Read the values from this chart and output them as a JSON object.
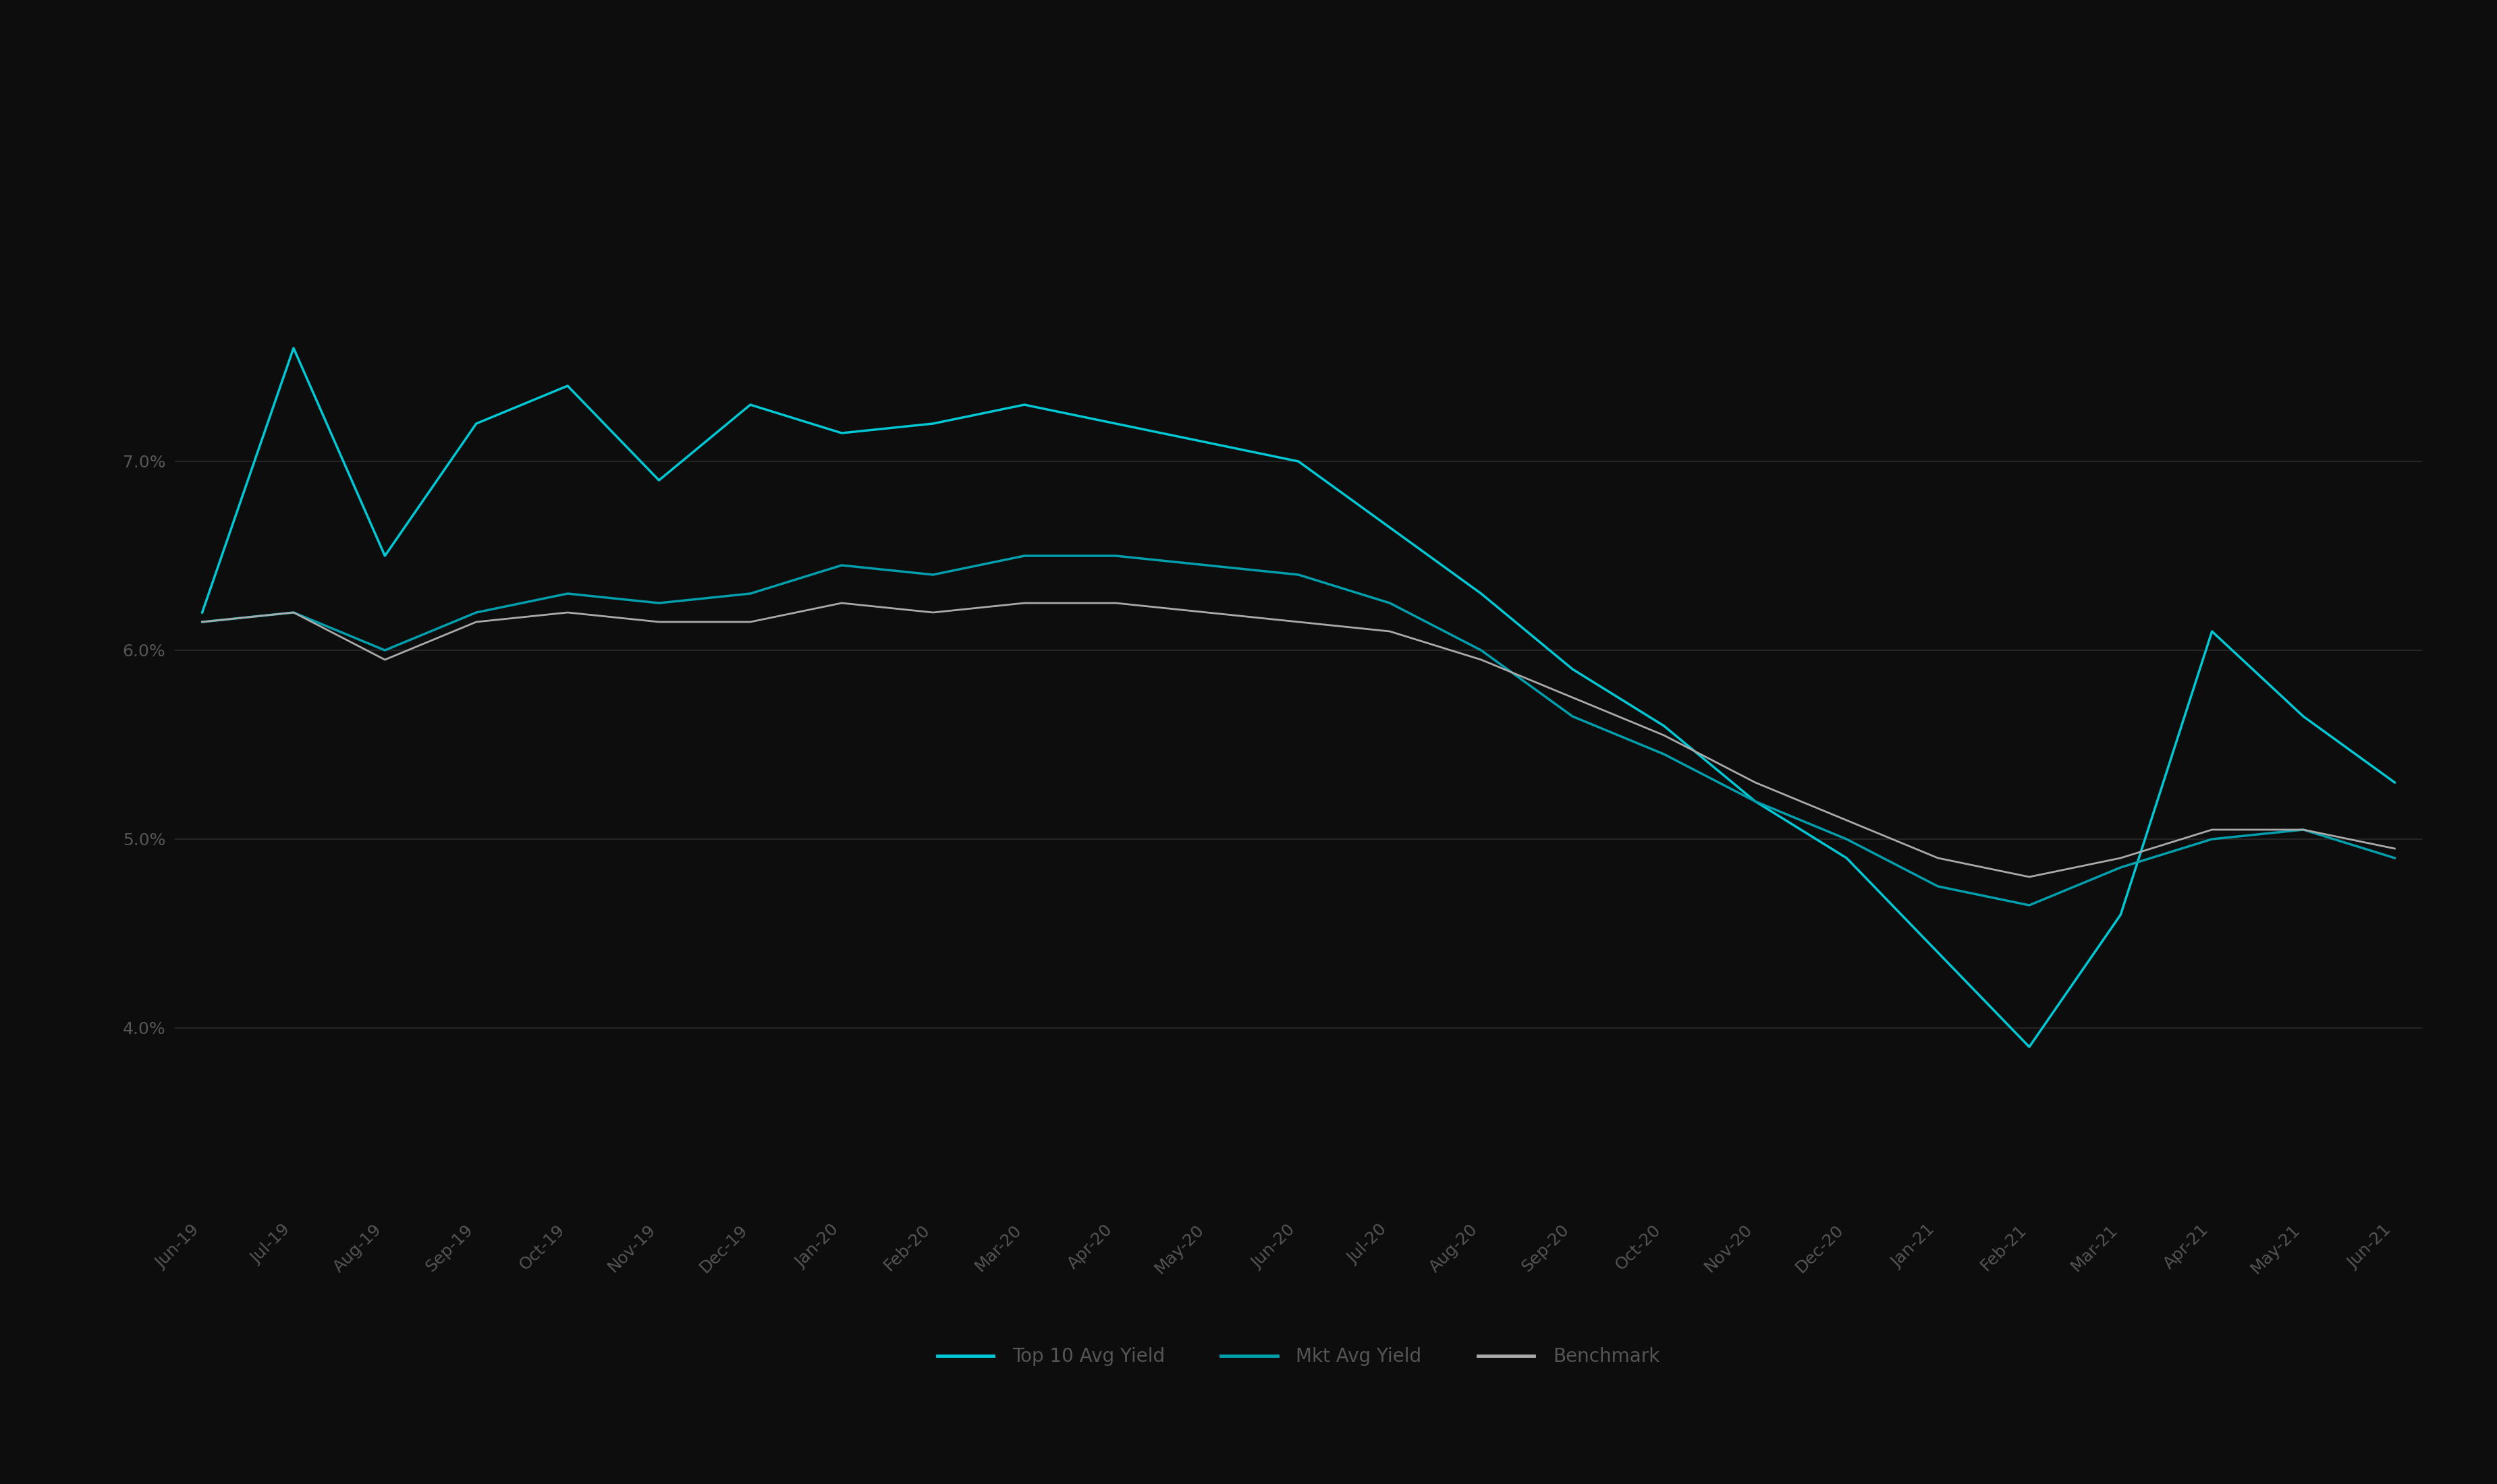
{
  "background_color": "#0d0d0d",
  "text_color": "#555555",
  "grid_color": "#2a2a2a",
  "title": "",
  "x_labels": [
    "Jun-19",
    "Jul-19",
    "Aug-19",
    "Sep-19",
    "Oct-19",
    "Nov-19",
    "Dec-19",
    "Jan-20",
    "Feb-20",
    "Mar-20",
    "Apr-20",
    "May-20",
    "Jun-20",
    "Jul-20",
    "Aug-20",
    "Sep-20",
    "Oct-20",
    "Nov-20",
    "Dec-20",
    "Jan-21",
    "Feb-21",
    "Mar-21",
    "Apr-21",
    "May-21",
    "Jun-21"
  ],
  "series": [
    {
      "name": "Top 10 Avg Yield",
      "color": "#00c8d4",
      "linewidth": 2.5,
      "values": [
        6.2,
        7.6,
        6.5,
        7.2,
        7.4,
        6.9,
        7.3,
        7.15,
        7.2,
        7.3,
        7.2,
        7.1,
        7.0,
        6.65,
        6.3,
        5.9,
        5.6,
        5.2,
        4.9,
        4.4,
        3.9,
        4.6,
        6.1,
        5.65,
        5.3
      ]
    },
    {
      "name": "Mkt Avg Yield",
      "color": "#009fad",
      "linewidth": 2.5,
      "values": [
        6.15,
        6.2,
        6.0,
        6.2,
        6.3,
        6.25,
        6.3,
        6.45,
        6.4,
        6.5,
        6.5,
        6.45,
        6.4,
        6.25,
        6.0,
        5.65,
        5.45,
        5.2,
        5.0,
        4.75,
        4.65,
        4.85,
        5.0,
        5.05,
        4.9
      ]
    },
    {
      "name": "Benchmark",
      "color": "#aaaaaa",
      "linewidth": 2.0,
      "values": [
        6.15,
        6.2,
        5.95,
        6.15,
        6.2,
        6.15,
        6.15,
        6.25,
        6.2,
        6.25,
        6.25,
        6.2,
        6.15,
        6.1,
        5.95,
        5.75,
        5.55,
        5.3,
        5.1,
        4.9,
        4.8,
        4.9,
        5.05,
        5.05,
        4.95
      ]
    }
  ],
  "ylim": [
    3.0,
    8.5
  ],
  "yticks": [
    4.0,
    5.0,
    6.0,
    7.0
  ],
  "legend_entries": [
    {
      "label": "Top 10 Avg Yield",
      "color": "#00c8d4"
    },
    {
      "label": "Mkt Avg Yield",
      "color": "#009fad"
    },
    {
      "label": "Benchmark",
      "color": "#aaaaaa"
    }
  ]
}
